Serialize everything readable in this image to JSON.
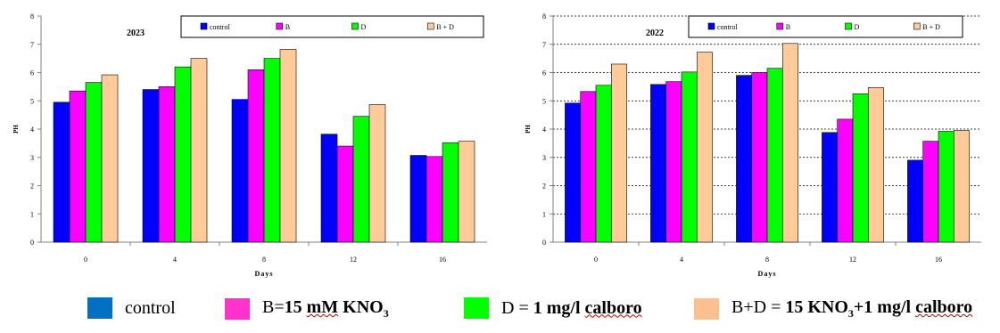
{
  "chart_data": [
    {
      "type": "bar",
      "title": "2023",
      "xlabel": "Days",
      "ylabel": "PH",
      "ylim": [
        0,
        8
      ],
      "yticks": [
        0,
        1,
        2,
        3,
        4,
        5,
        6,
        7,
        8
      ],
      "grid": false,
      "legend_position": "top-right",
      "categories": [
        "0",
        "4",
        "8",
        "12",
        "16"
      ],
      "series": [
        {
          "name": "control",
          "color": "#0000ff",
          "values": [
            4.95,
            5.4,
            5.05,
            3.82,
            3.07
          ]
        },
        {
          "name": "B",
          "color": "#ff00ff",
          "values": [
            5.35,
            5.5,
            6.1,
            3.4,
            3.03
          ]
        },
        {
          "name": "D",
          "color": "#00ff00",
          "values": [
            5.65,
            6.2,
            6.5,
            4.45,
            3.52
          ]
        },
        {
          "name": "B + D",
          "color": "#ffcc99",
          "values": [
            5.92,
            6.5,
            6.82,
            4.87,
            3.57
          ]
        }
      ]
    },
    {
      "type": "bar",
      "title": "2022",
      "xlabel": "Days",
      "ylabel": "PH",
      "ylim": [
        0,
        8
      ],
      "yticks": [
        0,
        1,
        2,
        3,
        4,
        5,
        6,
        7,
        8
      ],
      "grid": true,
      "legend_position": "top-right",
      "categories": [
        "0",
        "4",
        "8",
        "12",
        "16"
      ],
      "series": [
        {
          "name": "control",
          "color": "#0000ff",
          "values": [
            4.92,
            5.58,
            5.9,
            3.88,
            2.9
          ]
        },
        {
          "name": "B",
          "color": "#ff00ff",
          "values": [
            5.33,
            5.68,
            6.0,
            4.35,
            3.57
          ]
        },
        {
          "name": "D",
          "color": "#00ff00",
          "values": [
            5.55,
            6.02,
            6.15,
            5.25,
            3.92
          ]
        },
        {
          "name": "B + D",
          "color": "#ffcc99",
          "values": [
            6.3,
            6.72,
            7.03,
            5.47,
            3.95
          ]
        }
      ]
    }
  ],
  "bottom_legend": [
    {
      "color": "#0070c0",
      "label": "control"
    },
    {
      "color": "#ff33cc",
      "label_a": "B=",
      "label_b": "15 ",
      "label_c": "mM",
      "label_d": " KNO",
      "label_e": "3"
    },
    {
      "color": "#00ff00",
      "label_a": "D = ",
      "label_b": "1 mg/l ",
      "label_c": "calboro"
    },
    {
      "color": "#fac090",
      "label_a": "B+D = ",
      "label_b": "15 KNO",
      "label_c": "3",
      "label_d": "+1 mg/l ",
      "label_e": "calboro"
    }
  ]
}
